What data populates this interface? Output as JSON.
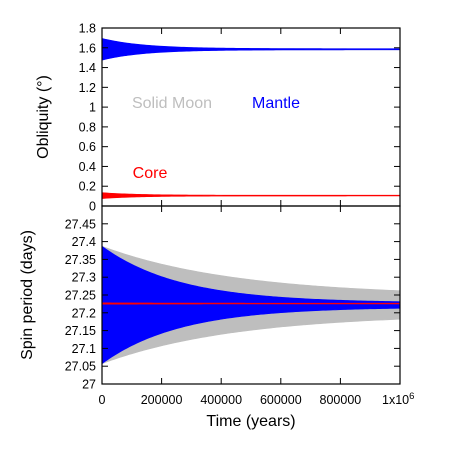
{
  "chart_data": [
    {
      "type": "area",
      "ylabel": "Obliquity (°)",
      "ylim": [
        0,
        1.8
      ],
      "yticks": [
        "0",
        "0.2",
        "0.4",
        "0.6",
        "0.8",
        "1",
        "1.2",
        "1.4",
        "1.6",
        "1.8"
      ],
      "xlim": [
        0,
        1000000
      ],
      "grid": false,
      "series": [
        {
          "name": "Solid Moon",
          "color": "#bebebe",
          "center": 1.585,
          "amp_start": 0.08,
          "amp_end": 0.005,
          "decay": 150000
        },
        {
          "name": "Mantle",
          "color": "#0000ff",
          "center": 1.585,
          "amp_start": 0.11,
          "amp_end": 0.006,
          "decay": 140000
        },
        {
          "name": "Core",
          "color": "#ff0000",
          "center": 0.105,
          "amp_start": 0.03,
          "amp_end": 0.004,
          "decay": 120000
        }
      ],
      "legend_labels": [
        {
          "text": "Solid Moon",
          "color": "#bebebe"
        },
        {
          "text": "Mantle",
          "color": "#0000ff"
        },
        {
          "text": "Core",
          "color": "#ff0000"
        }
      ]
    },
    {
      "type": "area",
      "ylabel": "Spin period (days)",
      "ylim": [
        27.0,
        27.5
      ],
      "yticks": [
        "27",
        "27.05",
        "27.1",
        "27.15",
        "27.2",
        "27.25",
        "27.3",
        "27.35",
        "27.4",
        "27.45"
      ],
      "xlabel": "Time (years)",
      "xlim": [
        0,
        1000000
      ],
      "xticks": [
        "0",
        "200000",
        "400000",
        "600000",
        "800000",
        "1x10^6"
      ],
      "grid": false,
      "series": [
        {
          "name": "Solid Moon",
          "color": "#bebebe",
          "center": 27.222,
          "amp_start": 0.165,
          "amp_end": 0.025,
          "decay": 450000
        },
        {
          "name": "Mantle",
          "color": "#0000ff",
          "center": 27.222,
          "amp_start": 0.165,
          "amp_end": 0.006,
          "decay": 260000
        },
        {
          "name": "Core",
          "color": "#ff0000",
          "center": 27.226,
          "amp_start": 0.002,
          "amp_end": 0.001,
          "decay": 300000
        }
      ]
    }
  ]
}
